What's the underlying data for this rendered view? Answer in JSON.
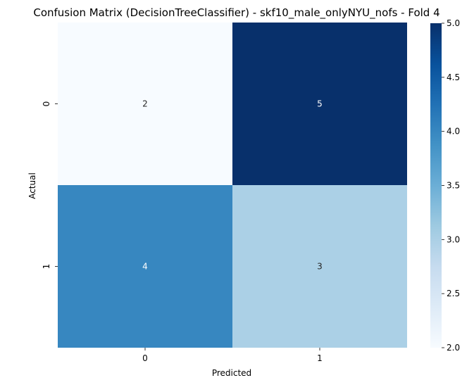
{
  "chart_data": {
    "type": "heatmap",
    "title": "Confusion Matrix (DecisionTreeClassifier) - skf10_male_onlyNYU_nofs - Fold 4",
    "xlabel": "Predicted",
    "ylabel": "Actual",
    "x_categories": [
      "0",
      "1"
    ],
    "y_categories": [
      "0",
      "1"
    ],
    "values": [
      [
        2,
        5
      ],
      [
        4,
        3
      ]
    ],
    "colormap": "Blues",
    "colorbar": {
      "min": 2.0,
      "max": 5.0,
      "ticks": [
        "2.0",
        "2.5",
        "3.0",
        "3.5",
        "4.0",
        "4.5",
        "5.0"
      ]
    },
    "colors": {
      "low": "#f7fbff",
      "high": "#08306b"
    }
  }
}
